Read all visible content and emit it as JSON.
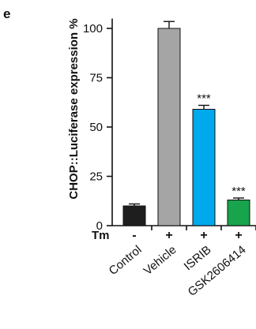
{
  "panel_label": "e",
  "chart_data": {
    "type": "bar",
    "categories": [
      "Control",
      "Vehicle",
      "ISRIB",
      "GSK2606414"
    ],
    "values": [
      10,
      100,
      59,
      13
    ],
    "errors": [
      1,
      3.5,
      2,
      1
    ],
    "colors": [
      "#1e1e1e",
      "#a5a5a5",
      "#00a8ec",
      "#18a44c"
    ],
    "title": "",
    "xlabel": "",
    "ylabel": "CHOP::Luciferase expression %",
    "ylim": [
      0,
      105
    ],
    "yticks": [
      0,
      25,
      50,
      75,
      100
    ],
    "ytick_labels": [
      "0",
      "25",
      "50",
      "75",
      "100"
    ],
    "annotations": [
      "",
      "",
      "***",
      "***"
    ],
    "treatment_label": "Tm",
    "treatment_signs": [
      "-",
      "+",
      "+",
      "+"
    ],
    "grid": false,
    "legend": "none"
  }
}
